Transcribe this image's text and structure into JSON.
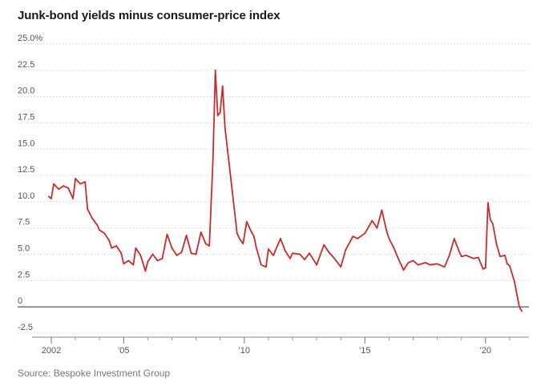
{
  "chart_data": {
    "type": "line",
    "title": "Junk-bond yields minus consumer-price index",
    "source": "Source: Bespoke Investment Group",
    "xlabel": "",
    "ylabel": "",
    "xlim": [
      2001.6,
      2021.8
    ],
    "ylim": [
      -2.5,
      25.0
    ],
    "grid": true,
    "y_ticks": [
      {
        "value": 25.0,
        "label": "25.0%"
      },
      {
        "value": 22.5,
        "label": "22.5"
      },
      {
        "value": 20.0,
        "label": "20.0"
      },
      {
        "value": 17.5,
        "label": "17.5"
      },
      {
        "value": 15.0,
        "label": "15.0"
      },
      {
        "value": 12.5,
        "label": "12.5"
      },
      {
        "value": 10.0,
        "label": "10.0"
      },
      {
        "value": 7.5,
        "label": "7.5"
      },
      {
        "value": 5.0,
        "label": "5.0"
      },
      {
        "value": 2.5,
        "label": "2.5"
      },
      {
        "value": 0,
        "label": "0"
      },
      {
        "value": -2.5,
        "label": "-2.5"
      }
    ],
    "x_labels": [
      {
        "value": 2002,
        "label": "2002"
      },
      {
        "value": 2005,
        "label": "'05"
      },
      {
        "value": 2010,
        "label": "'10"
      },
      {
        "value": 2015,
        "label": "'15"
      },
      {
        "value": 2020,
        "label": "'20"
      }
    ],
    "x_minor_ticks": [
      2003,
      2004,
      2006,
      2007,
      2008,
      2009,
      2011,
      2012,
      2013,
      2014,
      2016,
      2017,
      2018,
      2019,
      2021
    ],
    "colors": {
      "line": "#cc2a2a",
      "grid": "#dddddd",
      "zero_line": "#444444"
    },
    "series": [
      {
        "name": "",
        "x": [
          2001.9,
          2002.0,
          2002.1,
          2002.3,
          2002.5,
          2002.7,
          2002.9,
          2003.0,
          2003.2,
          2003.4,
          2003.5,
          2003.7,
          2003.9,
          2004.0,
          2004.2,
          2004.4,
          2004.5,
          2004.7,
          2004.9,
          2005.0,
          2005.2,
          2005.4,
          2005.5,
          2005.7,
          2005.9,
          2006.0,
          2006.2,
          2006.4,
          2006.6,
          2006.8,
          2007.0,
          2007.2,
          2007.4,
          2007.6,
          2007.8,
          2008.0,
          2008.2,
          2008.4,
          2008.55,
          2008.7,
          2008.8,
          2008.9,
          2009.0,
          2009.1,
          2009.2,
          2009.35,
          2009.5,
          2009.7,
          2009.8,
          2009.95,
          2010.1,
          2010.3,
          2010.4,
          2010.5,
          2010.7,
          2010.9,
          2011.0,
          2011.2,
          2011.5,
          2011.7,
          2011.9,
          2012.0,
          2012.3,
          2012.5,
          2012.7,
          2013.0,
          2013.3,
          2013.5,
          2013.7,
          2014.0,
          2014.2,
          2014.5,
          2014.7,
          2015.0,
          2015.3,
          2015.5,
          2015.7,
          2015.9,
          2016.0,
          2016.2,
          2016.4,
          2016.6,
          2016.8,
          2017.0,
          2017.2,
          2017.5,
          2017.7,
          2018.0,
          2018.3,
          2018.5,
          2018.7,
          2018.9,
          2019.0,
          2019.2,
          2019.5,
          2019.7,
          2019.9,
          2020.0,
          2020.1,
          2020.2,
          2020.3,
          2020.45,
          2020.6,
          2020.8,
          2020.9,
          2021.0,
          2021.2,
          2021.4,
          2021.5
        ],
        "values": [
          10.5,
          10.3,
          11.7,
          11.2,
          11.5,
          11.3,
          10.3,
          12.2,
          11.7,
          11.9,
          9.3,
          8.4,
          7.8,
          7.3,
          7.0,
          6.3,
          5.6,
          5.8,
          5.1,
          4.1,
          4.4,
          4.0,
          5.6,
          4.9,
          3.4,
          4.3,
          5.0,
          4.4,
          4.6,
          6.9,
          5.6,
          4.9,
          5.2,
          6.8,
          5.1,
          5.0,
          7.1,
          6.0,
          5.8,
          14.0,
          22.5,
          18.2,
          18.5,
          21.0,
          17.0,
          14.0,
          11.0,
          7.0,
          6.5,
          6.0,
          8.1,
          7.1,
          6.7,
          5.6,
          4.0,
          3.8,
          5.5,
          4.9,
          6.5,
          5.3,
          4.6,
          5.1,
          5.0,
          4.5,
          5.1,
          4.0,
          5.9,
          5.2,
          4.7,
          3.8,
          5.4,
          6.7,
          6.5,
          7.0,
          8.2,
          7.5,
          9.2,
          7.2,
          6.5,
          5.6,
          4.5,
          3.5,
          4.2,
          4.4,
          4.0,
          4.2,
          4.0,
          4.1,
          3.8,
          4.9,
          6.5,
          5.3,
          4.8,
          4.9,
          4.6,
          4.7,
          3.6,
          3.7,
          9.9,
          8.3,
          7.9,
          6.0,
          4.8,
          4.9,
          4.1,
          3.9,
          2.4,
          0.0,
          -0.4
        ]
      }
    ]
  }
}
